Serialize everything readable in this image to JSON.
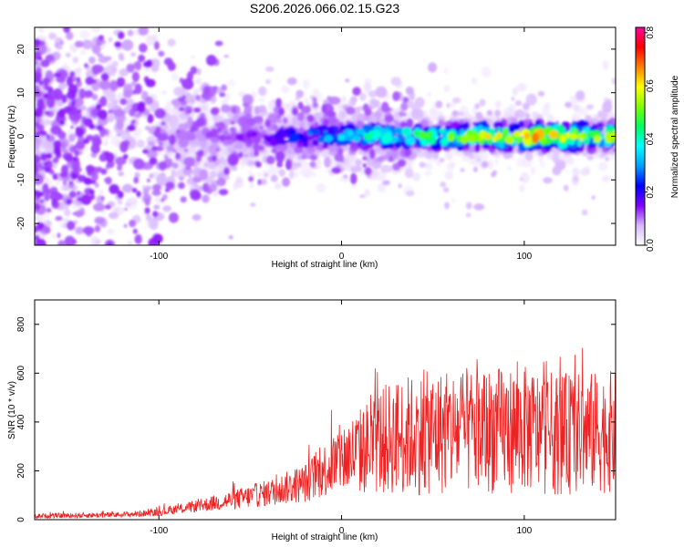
{
  "title": "S206.2026.066.02.15.G23",
  "chart_data": [
    {
      "type": "heatmap",
      "xlabel": "Height of straight line (km)",
      "ylabel": "Frequency (Hz)",
      "xlim": [
        -168,
        150
      ],
      "ylim": [
        -25,
        25
      ],
      "xticks": [
        -100,
        0,
        100
      ],
      "yticks": [
        -20,
        -10,
        0,
        10,
        20
      ],
      "colorbar": {
        "label": "Normalized spectral amplitude",
        "range": [
          0,
          0.82
        ],
        "ticks": [
          0.0,
          0.2,
          0.4,
          0.6,
          0.8
        ],
        "colors": [
          "#ffffff",
          "#d8b8ff",
          "#8000ff",
          "#0000ff",
          "#00a0ff",
          "#00ffff",
          "#00ff60",
          "#80ff00",
          "#ffff00",
          "#ff8000",
          "#ff0000",
          "#ff00a0"
        ]
      },
      "description_ridge": {
        "center_frequency": 0,
        "ridge_amplitude_by_height": [
          {
            "x": -168,
            "amp": 0.02
          },
          {
            "x": -100,
            "amp": 0.05
          },
          {
            "x": -50,
            "amp": 0.12
          },
          {
            "x": 0,
            "amp": 0.3
          },
          {
            "x": 50,
            "amp": 0.4
          },
          {
            "x": 100,
            "amp": 0.55
          },
          {
            "x": 150,
            "amp": 0.45
          }
        ]
      }
    },
    {
      "type": "line",
      "xlabel": "Height of straight line (km)",
      "ylabel": "SNR (10 * v/v)",
      "xlim": [
        -168,
        150
      ],
      "ylim": [
        0,
        900
      ],
      "xticks": [
        -100,
        0,
        100
      ],
      "yticks": [
        0,
        200,
        400,
        600,
        800
      ],
      "color": "#ee2222",
      "envelope": {
        "x": [
          -168,
          -120,
          -100,
          -80,
          -60,
          -40,
          -20,
          -10,
          0,
          10,
          20,
          30,
          40,
          60,
          80,
          100,
          120,
          150
        ],
        "mean": [
          15,
          20,
          30,
          55,
          80,
          110,
          150,
          200,
          250,
          280,
          320,
          340,
          350,
          360,
          365,
          370,
          350,
          360
        ],
        "spread": [
          10,
          12,
          15,
          25,
          40,
          55,
          80,
          110,
          150,
          180,
          220,
          240,
          250,
          260,
          260,
          260,
          250,
          250
        ]
      }
    }
  ]
}
